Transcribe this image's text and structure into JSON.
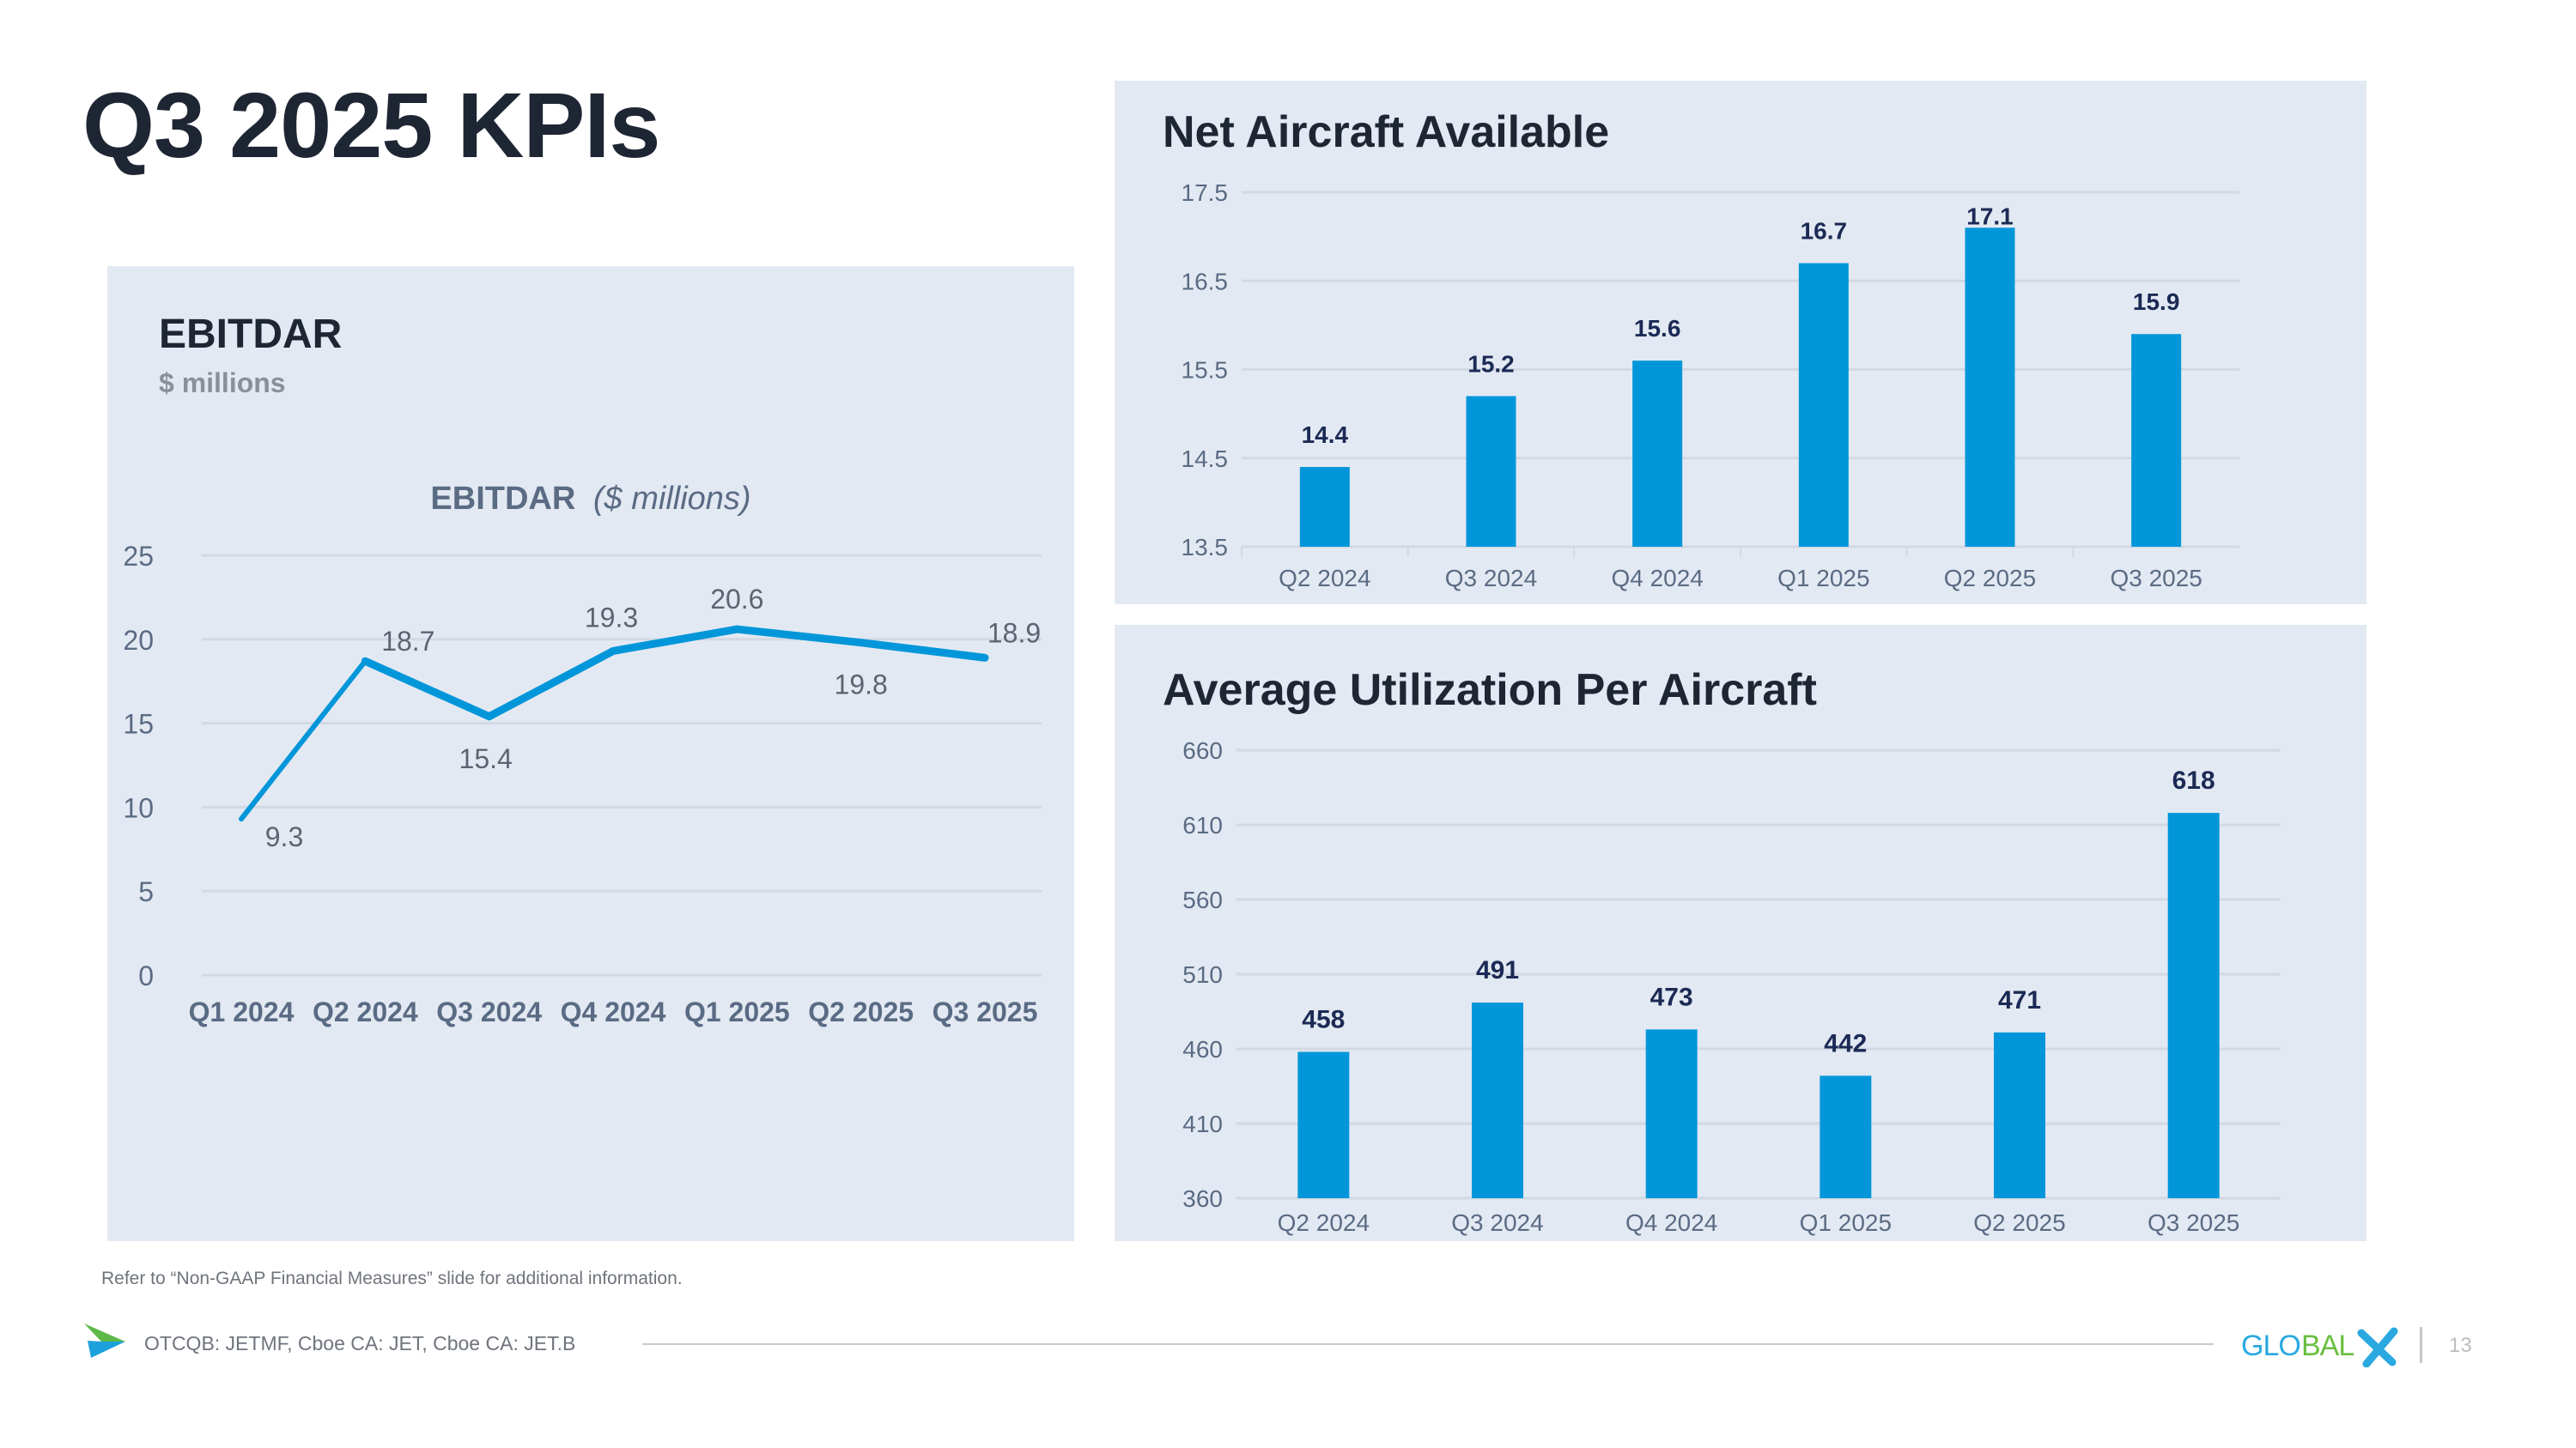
{
  "page": {
    "title": "Q3 2025 KPIs",
    "footnote": "Refer to “Non-GAAP Financial Measures” slide for additional information.",
    "ticker_text": "OTCQB: JETMF, Cboe CA: JET, Cboe CA: JET.B",
    "logo_text": "GLOBALX",
    "page_number": "13",
    "colors": {
      "panel_bg": "#e3e9f2",
      "bar": "#0096d9",
      "line": "#0096d9",
      "title_text": "#1f2633",
      "axis_text": "#5a6b84",
      "bar_label": "#1b2a55",
      "logo_blue": "#2aa9e0",
      "logo_green": "#6abf3f"
    }
  },
  "ebitdar_panel": {
    "title": "EBITDAR",
    "subtitle": "$ millions"
  },
  "net_panel": {
    "title": "Net Aircraft Available"
  },
  "util_panel": {
    "title": "Average Utilization Per Aircraft"
  },
  "chart_data": [
    {
      "id": "ebitdar",
      "type": "line",
      "title": "EBITDAR",
      "title_suffix": "($ millions)",
      "xlabel": "",
      "ylabel": "",
      "categories": [
        "Q1 2024",
        "Q2 2024",
        "Q3 2024",
        "Q4 2024",
        "Q1 2025",
        "Q2 2025",
        "Q3 2025"
      ],
      "series": [
        {
          "name": "EBITDAR",
          "values": [
            9.3,
            18.7,
            15.4,
            19.3,
            20.6,
            19.8,
            18.9
          ]
        }
      ],
      "data_labels": [
        "9.3",
        "18.7",
        "15.4",
        "19.3",
        "20.6",
        "19.8",
        "18.9"
      ],
      "ylim": [
        0,
        25
      ],
      "yticks": [
        0,
        5,
        10,
        15,
        20,
        25
      ],
      "grid": true,
      "legend": "none"
    },
    {
      "id": "net_aircraft",
      "type": "bar",
      "title": "Net Aircraft Available",
      "xlabel": "",
      "ylabel": "",
      "categories": [
        "Q2 2024",
        "Q3 2024",
        "Q4 2024",
        "Q1 2025",
        "Q2 2025",
        "Q3 2025"
      ],
      "values": [
        14.4,
        15.2,
        15.6,
        16.7,
        17.1,
        15.9
      ],
      "data_labels": [
        "14.4",
        "15.2",
        "15.6",
        "16.7",
        "17.1",
        "15.9"
      ],
      "ylim": [
        13.5,
        17.5
      ],
      "yticks": [
        "13.5",
        "14.5",
        "15.5",
        "16.5",
        "17.5"
      ],
      "grid": true,
      "legend": "none"
    },
    {
      "id": "utilization",
      "type": "bar",
      "title": "Average Utilization Per Aircraft",
      "xlabel": "",
      "ylabel": "",
      "categories": [
        "Q2 2024",
        "Q3 2024",
        "Q4 2024",
        "Q1 2025",
        "Q2 2025",
        "Q3 2025"
      ],
      "values": [
        458,
        491,
        473,
        442,
        471,
        618
      ],
      "data_labels": [
        "458",
        "491",
        "473",
        "442",
        "471",
        "618"
      ],
      "ylim": [
        360,
        660
      ],
      "yticks": [
        "360",
        "410",
        "460",
        "510",
        "560",
        "610",
        "660"
      ],
      "grid": true,
      "legend": "none"
    }
  ]
}
